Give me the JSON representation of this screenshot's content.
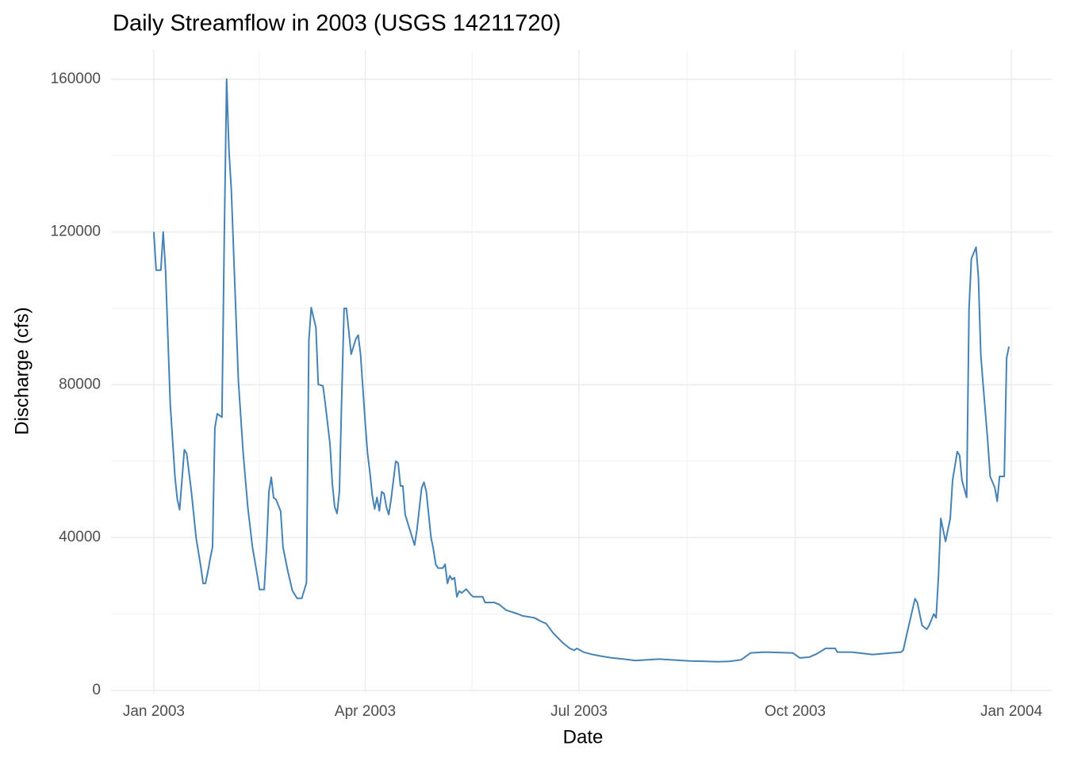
{
  "chart_data": {
    "type": "line",
    "title": "Daily Streamflow in 2003 (USGS 14211720)",
    "x_label": "Date",
    "y_label": "Discharge (cfs)",
    "color": "#4682b4",
    "grid": true,
    "x": [
      0,
      1,
      3,
      4,
      5,
      7,
      9,
      10,
      11,
      13,
      14,
      16,
      18,
      20,
      21,
      22,
      23,
      24,
      25,
      26,
      27,
      29,
      30,
      31,
      32,
      33,
      35,
      36,
      38,
      40,
      42,
      44,
      45,
      47,
      48,
      49,
      50,
      51,
      52,
      54,
      55,
      57,
      59,
      61,
      63,
      65,
      66,
      67,
      69,
      70,
      72,
      73,
      75,
      76,
      77,
      78,
      79,
      80,
      81,
      82,
      84,
      86,
      87,
      88,
      90,
      91,
      92,
      93,
      94,
      95,
      96,
      97,
      98,
      99,
      100,
      101,
      103,
      104,
      105,
      106,
      107,
      109,
      111,
      112,
      114,
      115,
      116,
      118,
      119,
      120,
      121,
      123,
      124,
      125,
      126,
      127,
      128,
      129,
      130,
      131,
      133,
      135,
      136,
      140,
      141,
      145,
      147,
      150,
      155,
      157,
      162,
      165,
      167,
      170,
      174,
      177,
      179,
      180,
      183,
      186,
      190,
      195,
      200,
      205,
      215,
      228,
      235,
      240,
      245,
      250,
      254,
      260,
      272,
      275,
      279,
      282,
      286,
      290,
      291,
      297,
      306,
      314,
      318,
      319,
      321,
      324,
      325,
      327,
      329,
      330,
      332,
      333,
      334,
      335,
      337,
      339,
      340,
      342,
      343,
      344,
      346,
      347,
      348,
      350,
      351,
      352,
      353,
      355,
      356,
      358,
      359,
      360,
      362,
      363,
      364
    ],
    "values": [
      120000,
      110000,
      110000,
      120000,
      110000,
      75000,
      56000,
      50000,
      47300,
      63000,
      62000,
      52000,
      40000,
      32400,
      28000,
      28000,
      31000,
      34500,
      37500,
      68700,
      72400,
      71500,
      118500,
      160000,
      141300,
      131000,
      97700,
      81100,
      62500,
      48000,
      37500,
      30300,
      26400,
      26400,
      37500,
      52000,
      55800,
      50400,
      50000,
      46900,
      37500,
      31300,
      26100,
      24100,
      24100,
      28200,
      91500,
      100200,
      95000,
      80100,
      79700,
      75000,
      64500,
      54000,
      48000,
      46300,
      52000,
      77000,
      100000,
      100000,
      88000,
      92000,
      93000,
      88000,
      70000,
      62000,
      57000,
      51000,
      47500,
      50500,
      47000,
      52000,
      51500,
      48000,
      46000,
      50000,
      60000,
      59500,
      53500,
      53500,
      46000,
      42000,
      38000,
      42000,
      53000,
      54500,
      52000,
      40000,
      37000,
      33000,
      32000,
      32000,
      33000,
      28000,
      30000,
      29000,
      29500,
      24500,
      26000,
      25500,
      26500,
      25000,
      24500,
      24500,
      23000,
      23000,
      22500,
      21000,
      20000,
      19500,
      19000,
      18000,
      17500,
      15000,
      12500,
      11000,
      10500,
      11000,
      10000,
      9500,
      9000,
      8500,
      8200,
      7800,
      8200,
      7700,
      7600,
      7500,
      7600,
      8000,
      9800,
      10000,
      9800,
      8500,
      8700,
      9500,
      11000,
      11000,
      10000,
      10000,
      9400,
      9800,
      10000,
      10500,
      16000,
      24000,
      23000,
      17000,
      16000,
      17000,
      20000,
      19000,
      30000,
      45000,
      39000,
      45000,
      55000,
      62500,
      61500,
      55000,
      50500,
      100000,
      113000,
      116000,
      108000,
      88000,
      80000,
      65000,
      56000,
      53000,
      49500,
      56000,
      56000,
      87000,
      90000
    ],
    "xlim": [
      -18.2,
      382.2
    ],
    "xticks": [
      {
        "value": 0,
        "label": "Jan 2003"
      },
      {
        "value": 90,
        "label": "Apr 2003"
      },
      {
        "value": 181,
        "label": "Jul 2003"
      },
      {
        "value": 273,
        "label": "Oct 2003"
      },
      {
        "value": 365,
        "label": "Jan 2004"
      }
    ],
    "ylim": [
      -650,
      167650
    ],
    "yticks": [
      0,
      40000,
      80000,
      120000,
      160000
    ]
  }
}
